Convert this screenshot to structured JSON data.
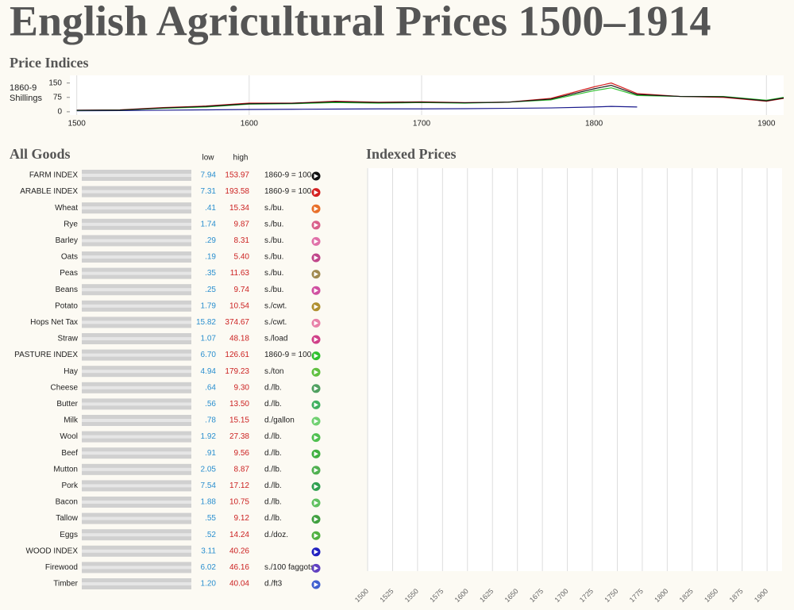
{
  "header": {
    "title": "English Agricultural Prices 1500–1914"
  },
  "index_chart": {
    "type": "line",
    "title": "Price Indices",
    "ylabel": [
      "1860-9",
      "Shillings"
    ],
    "x": [
      1500,
      1525,
      1550,
      1575,
      1600,
      1625,
      1650,
      1675,
      1700,
      1725,
      1750,
      1775,
      1800,
      1810,
      1825,
      1850,
      1875,
      1900,
      1910
    ],
    "series": [
      {
        "color": "#1a1a8c",
        "values": [
          5,
          6,
          8,
          10,
          12,
          13,
          14,
          15,
          15,
          16,
          18,
          20,
          25,
          28,
          25,
          null,
          null,
          null,
          null
        ]
      },
      {
        "color": "#d42020",
        "values": [
          8,
          10,
          22,
          30,
          45,
          45,
          55,
          50,
          52,
          48,
          50,
          70,
          130,
          150,
          95,
          80,
          75,
          55,
          70
        ]
      },
      {
        "color": "#30c030",
        "values": [
          7,
          9,
          18,
          25,
          40,
          42,
          48,
          45,
          48,
          45,
          50,
          62,
          110,
          125,
          85,
          80,
          80,
          60,
          75
        ]
      },
      {
        "color": "#111111",
        "values": [
          8,
          9,
          20,
          28,
          42,
          44,
          52,
          48,
          50,
          47,
          50,
          66,
          120,
          138,
          90,
          80,
          78,
          57,
          72
        ]
      }
    ],
    "xlim": [
      1496,
      1910
    ],
    "ylim": [
      -17,
      190
    ],
    "yticks": [
      0,
      75,
      150
    ],
    "xticks": [
      1500,
      1600,
      1700,
      1800,
      1900
    ]
  },
  "goods": {
    "title": "All Goods",
    "low_header": "low",
    "high_header": "high",
    "rows": [
      {
        "name": "FARM INDEX",
        "low": "7.94",
        "high": "153.97",
        "unit": "1860-9 = 100",
        "color": "#111111"
      },
      {
        "name": "ARABLE INDEX",
        "low": "7.31",
        "high": "193.58",
        "unit": "1860-9 = 100",
        "color": "#d42020"
      },
      {
        "name": "Wheat",
        "low": ".41",
        "high": "15.34",
        "unit": "s./bu.",
        "color": "#e8702a"
      },
      {
        "name": "Rye",
        "low": "1.74",
        "high": "9.87",
        "unit": "s./bu.",
        "color": "#d9608a"
      },
      {
        "name": "Barley",
        "low": ".29",
        "high": "8.31",
        "unit": "s./bu.",
        "color": "#e070a8"
      },
      {
        "name": "Oats",
        "low": ".19",
        "high": "5.40",
        "unit": "s./bu.",
        "color": "#c0468a"
      },
      {
        "name": "Peas",
        "low": ".35",
        "high": "11.63",
        "unit": "s./bu.",
        "color": "#a08a50"
      },
      {
        "name": "Beans",
        "low": ".25",
        "high": "9.74",
        "unit": "s./bu.",
        "color": "#d050a0"
      },
      {
        "name": "Potato",
        "low": "1.79",
        "high": "10.54",
        "unit": "s./cwt.",
        "color": "#b09030"
      },
      {
        "name": "Hops Net Tax",
        "low": "15.82",
        "high": "374.67",
        "unit": "s./cwt.",
        "color": "#e880a8"
      },
      {
        "name": "Straw",
        "low": "1.07",
        "high": "48.18",
        "unit": "s./load",
        "color": "#d04088"
      },
      {
        "name": "PASTURE INDEX",
        "low": "6.70",
        "high": "126.61",
        "unit": "1860-9 = 100",
        "color": "#30c030"
      },
      {
        "name": "Hay",
        "low": "4.94",
        "high": "179.23",
        "unit": "s./ton",
        "color": "#60c040"
      },
      {
        "name": "Cheese",
        "low": ".64",
        "high": "9.30",
        "unit": "d./lb.",
        "color": "#50a060"
      },
      {
        "name": "Butter",
        "low": ".56",
        "high": "13.50",
        "unit": "d./lb.",
        "color": "#40b060"
      },
      {
        "name": "Milk",
        "low": ".78",
        "high": "15.15",
        "unit": "d./gallon",
        "color": "#70d070"
      },
      {
        "name": "Wool",
        "low": "1.92",
        "high": "27.38",
        "unit": "d./lb.",
        "color": "#50c050"
      },
      {
        "name": "Beef",
        "low": ".91",
        "high": "9.56",
        "unit": "d./lb.",
        "color": "#40b040"
      },
      {
        "name": "Mutton",
        "low": "2.05",
        "high": "8.87",
        "unit": "d./lb.",
        "color": "#50b050"
      },
      {
        "name": "Pork",
        "low": "7.54",
        "high": "17.12",
        "unit": "d./lb.",
        "color": "#30a050"
      },
      {
        "name": "Bacon",
        "low": "1.88",
        "high": "10.75",
        "unit": "d./lb.",
        "color": "#60c060"
      },
      {
        "name": "Tallow",
        "low": ".55",
        "high": "9.12",
        "unit": "d./lb.",
        "color": "#40a040"
      },
      {
        "name": "Eggs",
        "low": ".52",
        "high": "14.24",
        "unit": "d./doz.",
        "color": "#50b040"
      },
      {
        "name": "WOOD INDEX",
        "low": "3.11",
        "high": "40.26",
        "unit": "",
        "color": "#2020c0"
      },
      {
        "name": "Firewood",
        "low": "6.02",
        "high": "46.16",
        "unit": "s./100 faggots",
        "color": "#6040c0"
      },
      {
        "name": "Timber",
        "low": "1.20",
        "high": "40.04",
        "unit": "d./ft3",
        "color": "#4060d0"
      }
    ]
  },
  "indexed_chart": {
    "title": "Indexed Prices",
    "xlim": [
      1500,
      1915
    ],
    "xticks": [
      1500,
      1525,
      1550,
      1575,
      1600,
      1625,
      1650,
      1675,
      1700,
      1725,
      1750,
      1775,
      1800,
      1825,
      1850,
      1875,
      1900
    ]
  }
}
